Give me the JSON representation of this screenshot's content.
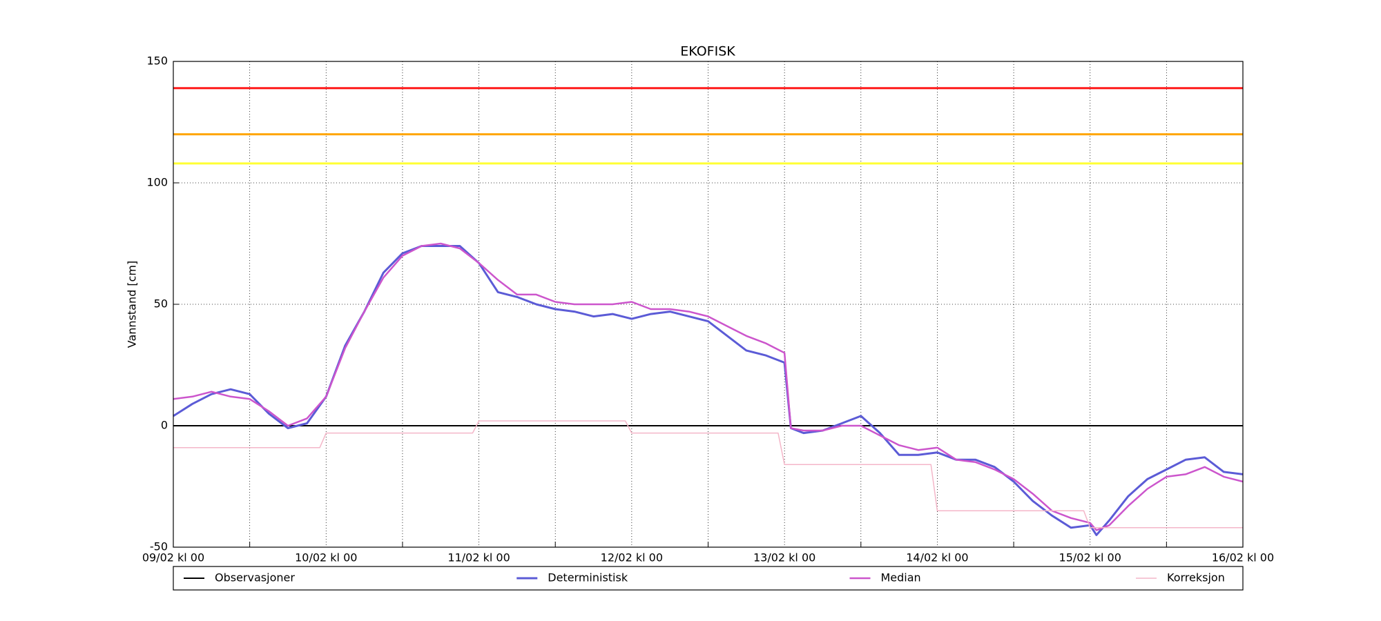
{
  "chart_data": {
    "type": "line",
    "title": "EKOFISK",
    "y_label": "Vannstand [cm]",
    "x": [
      0,
      3,
      6,
      9,
      12,
      15,
      18,
      21,
      24,
      27,
      30,
      33,
      36,
      39,
      42,
      45,
      48,
      51,
      54,
      57,
      60,
      63,
      66,
      69,
      72,
      75,
      78,
      81,
      84,
      87,
      90,
      93,
      96,
      97,
      99,
      102,
      105,
      108,
      111,
      114,
      117,
      120,
      123,
      126,
      129,
      132,
      135,
      138,
      141,
      144,
      145,
      147,
      150,
      153,
      156,
      159,
      162,
      165,
      168
    ],
    "xlim": [
      0,
      168
    ],
    "xticks": [
      {
        "value": 0,
        "label": "09/02 kl 00"
      },
      {
        "value": 24,
        "label": "10/02 kl 00"
      },
      {
        "value": 48,
        "label": "11/02 kl 00"
      },
      {
        "value": 72,
        "label": "12/02 kl 00"
      },
      {
        "value": 96,
        "label": "13/02 kl 00"
      },
      {
        "value": 120,
        "label": "14/02 kl 00"
      },
      {
        "value": 144,
        "label": "15/02 kl 00"
      },
      {
        "value": 168,
        "label": "16/02 kl 00"
      }
    ],
    "xminorticks": [
      12,
      36,
      60,
      84,
      108,
      132,
      156
    ],
    "ylim": [
      -50,
      150
    ],
    "yticks": [
      -50,
      0,
      50,
      100,
      150
    ],
    "grid": true,
    "hlines": [
      {
        "value": 139,
        "color": "#ff1a1a"
      },
      {
        "value": 120,
        "color": "#ffa500"
      },
      {
        "value": 108,
        "color": "#ffff33"
      }
    ],
    "series": [
      {
        "name": "Observasjoner",
        "color": "#000000",
        "width": 2,
        "x": [
          0,
          168
        ],
        "values": [
          0,
          0
        ]
      },
      {
        "name": "Deterministisk",
        "color": "#5b5bd6",
        "width": 3,
        "values": [
          4,
          9,
          13,
          15,
          13,
          5,
          -1,
          1,
          12,
          33,
          47,
          63,
          71,
          74,
          74,
          74,
          67,
          55,
          53,
          50,
          48,
          47,
          45,
          46,
          44,
          46,
          47,
          45,
          43,
          37,
          31,
          29,
          26,
          -1,
          -3,
          -2,
          1,
          4,
          -3,
          -12,
          -12,
          -11,
          -14,
          -14,
          -17,
          -23,
          -31,
          -37,
          -42,
          -41,
          -45,
          -39,
          -29,
          -22,
          -18,
          -14,
          -13,
          -19,
          -20
        ]
      },
      {
        "name": "Median",
        "color": "#cc55cc",
        "width": 2.5,
        "values": [
          11,
          12,
          14,
          12,
          11,
          6,
          0,
          3,
          12,
          32,
          47,
          61,
          70,
          74,
          75,
          73,
          67,
          60,
          54,
          54,
          51,
          50,
          50,
          50,
          51,
          48,
          48,
          47,
          45,
          41,
          37,
          34,
          30,
          -1,
          -2,
          -2,
          0,
          0,
          -4,
          -8,
          -10,
          -9,
          -14,
          -15,
          -18,
          -22,
          -28,
          -35,
          -38,
          -40,
          -43,
          -41,
          -33,
          -26,
          -21,
          -20,
          -17,
          -21,
          -23
        ]
      },
      {
        "name": "Korreksjon",
        "color": "#f4b6c8",
        "width": 1.5,
        "x": [
          0,
          23,
          24,
          47,
          48,
          71,
          72,
          95,
          96,
          119,
          120,
          143,
          144,
          168
        ],
        "values": [
          -9,
          -9,
          -3,
          -3,
          2,
          2,
          -3,
          -3,
          -16,
          -16,
          -35,
          -35,
          -42,
          -42
        ]
      }
    ],
    "legend": "bottom"
  }
}
